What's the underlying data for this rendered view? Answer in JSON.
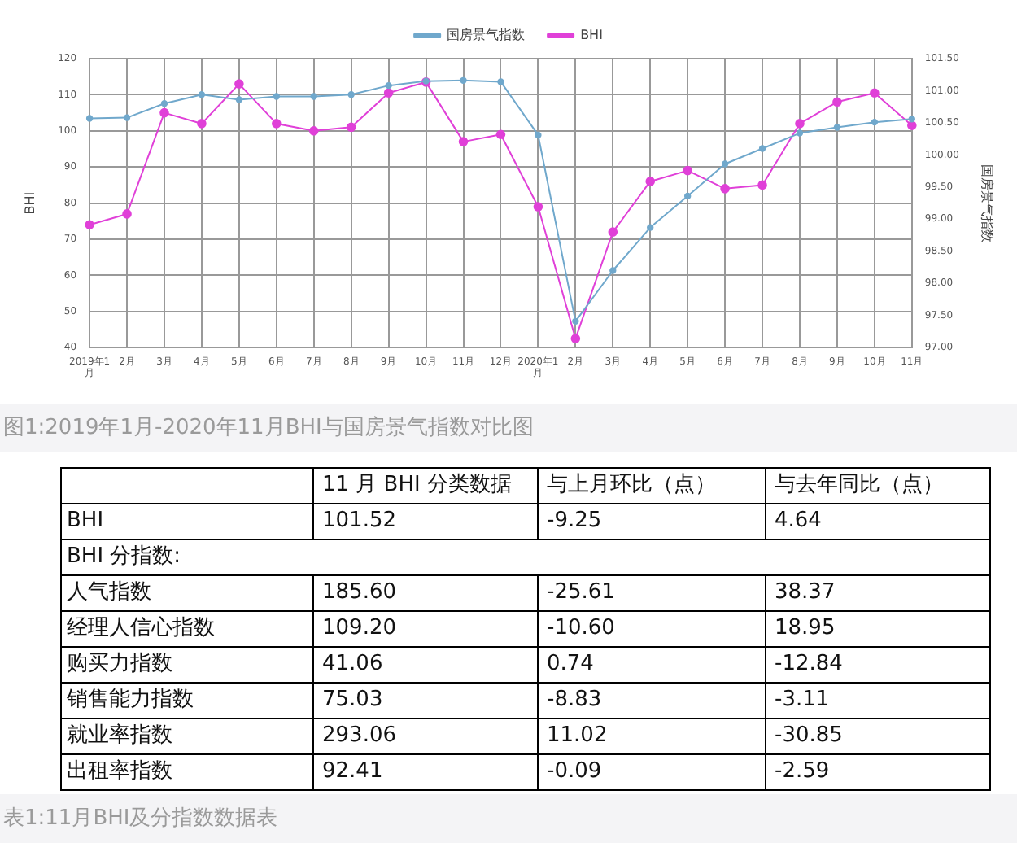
{
  "chart_data": [
    {
      "type": "line",
      "categories": [
        "2019年1月",
        "2月",
        "3月",
        "4月",
        "5月",
        "6月",
        "7月",
        "8月",
        "9月",
        "10月",
        "11月",
        "12月",
        "2020年1月",
        "2月",
        "3月",
        "4月",
        "5月",
        "6月",
        "7月",
        "8月",
        "9月",
        "10月",
        "11月"
      ],
      "series": [
        {
          "name": "BHI",
          "color": "#e040d8",
          "values": [
            74,
            77,
            105,
            102,
            113,
            102,
            100,
            101,
            110.5,
            113.5,
            97,
            99,
            79,
            42.5,
            72,
            86,
            89,
            84,
            85,
            102,
            108,
            110.5,
            101.5
          ]
        },
        {
          "name": "国房景气指数",
          "color": "#70a8cc",
          "axis": "y2",
          "values": [
            100.57,
            100.58,
            100.8,
            100.94,
            100.86,
            100.91,
            100.91,
            100.94,
            101.08,
            101.15,
            101.16,
            101.14,
            100.31,
            97.41,
            98.2,
            98.87,
            99.36,
            99.86,
            100.1,
            100.34,
            100.43,
            100.51,
            100.56
          ]
        }
      ],
      "ylabel": "BHI",
      "y2label": "国房景气指数",
      "ylim": [
        40,
        120
      ],
      "yticks": [
        40,
        50,
        60,
        70,
        80,
        90,
        100,
        110,
        120
      ],
      "y2lim": [
        97,
        101.5
      ],
      "y2ticks": [
        {
          "value": 97,
          "label": "97.00"
        },
        {
          "value": 97.5,
          "label": "97.50"
        },
        {
          "value": 98,
          "label": "98.00"
        },
        {
          "value": 98.5,
          "label": "98.50"
        },
        {
          "value": 99,
          "label": "99.00"
        },
        {
          "value": 99.5,
          "label": "99.50"
        },
        {
          "value": 100,
          "label": "100.00"
        },
        {
          "value": 100.5,
          "label": "100.50"
        },
        {
          "value": 101,
          "label": "101.00"
        },
        {
          "value": 101.5,
          "label": "101.50"
        }
      ],
      "grid": true,
      "legend": "top",
      "marker": "circle",
      "line_style": "solid",
      "annotations": [
        "图1:2019年1月-2020年11月BHI与国房景气指数对比图"
      ]
    },
    {
      "type": "heatmap",
      "categories": [
        "11 月 BHI 分类数据",
        "与上月环比（点）",
        "与去年同比（点）"
      ],
      "y_categories": [
        "BHI",
        "BHI 分指数:",
        "人气指数",
        "经理人信心指数",
        "购买力指数",
        "销售能力指数",
        "就业率指数",
        "出租率指数"
      ],
      "cells": [
        [
          101.52,
          -9.25,
          4.64
        ],
        [
          null,
          null,
          null
        ],
        [
          185.6,
          -25.61,
          38.37
        ],
        [
          109.2,
          -10.6,
          18.95
        ],
        [
          41.06,
          0.74,
          -12.84
        ],
        [
          75.03,
          -8.83,
          -3.11
        ],
        [
          293.06,
          11.02,
          -30.85
        ],
        [
          92.41,
          -0.09,
          -2.59
        ]
      ],
      "data_labels": true,
      "cell_labels": [
        [
          "101.52",
          "-9.25",
          "4.64"
        ],
        [
          null,
          null,
          null
        ],
        [
          "185.60",
          "-25.61",
          "38.37"
        ],
        [
          "109.20",
          "-10.60",
          "18.95"
        ],
        [
          "41.06",
          "0.74",
          "-12.84"
        ],
        [
          "75.03",
          "-8.83",
          "-3.11"
        ],
        [
          "293.06",
          "11.02",
          "-30.85"
        ],
        [
          "92.41",
          "-0.09",
          "-2.59"
        ]
      ],
      "annotations": [
        "表1:11月BHI及分指数数据表"
      ]
    }
  ]
}
